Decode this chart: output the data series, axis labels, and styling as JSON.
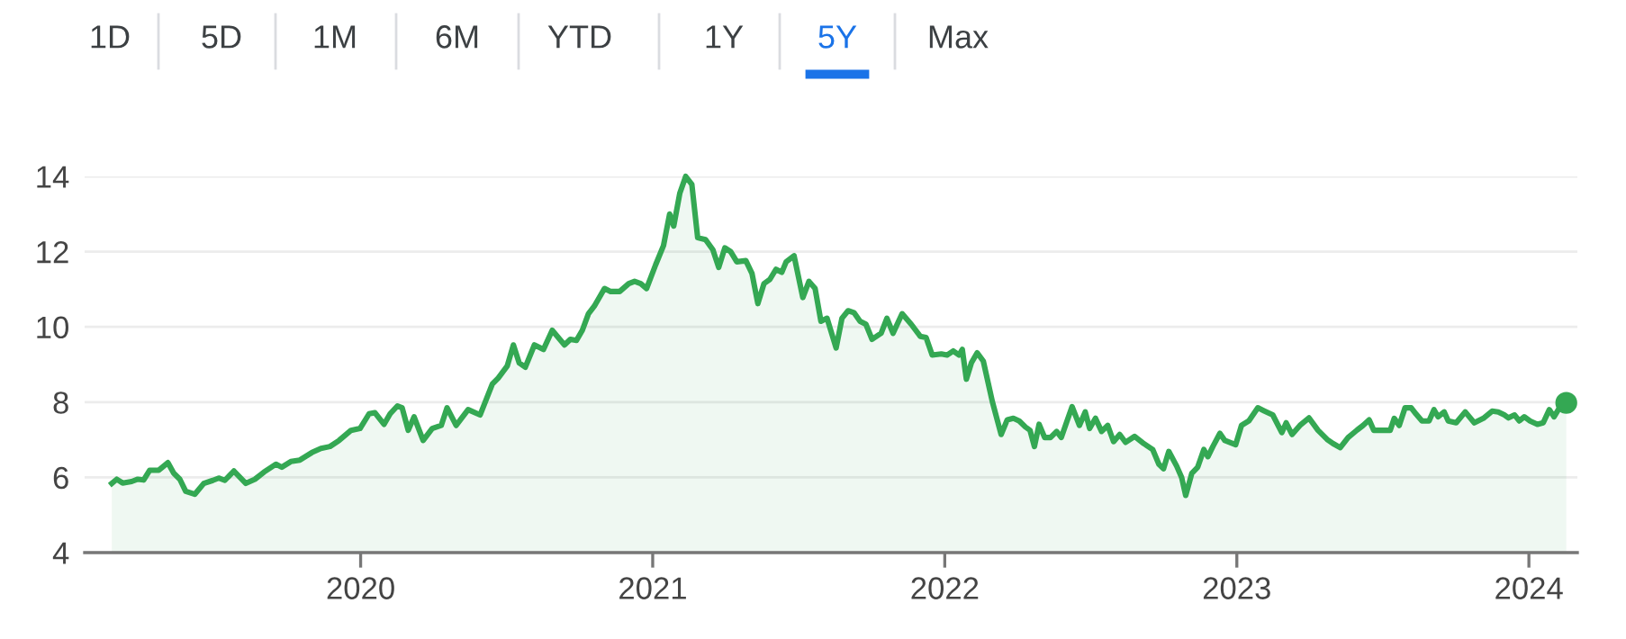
{
  "chart_data": {
    "type": "area",
    "annotations": [
      "1D",
      "5D",
      "1M",
      "6M",
      "YTD",
      "1Y",
      "5Y",
      "Max"
    ],
    "xlim": [
      2019.055,
      2024.166
    ],
    "xticks": [
      2020,
      2021,
      2022,
      2023,
      2024
    ],
    "ylim": [
      4,
      14
    ],
    "yticks": [
      4,
      6,
      8,
      10,
      12,
      14
    ],
    "grid": "y",
    "series": [
      {
        "color": "#34a853",
        "x": [
          2019.148,
          2019.165,
          2019.185,
          2019.216,
          2019.237,
          2019.257,
          2019.278,
          2019.309,
          2019.34,
          2019.36,
          2019.381,
          2019.401,
          2019.432,
          2019.463,
          2019.494,
          2019.514,
          2019.535,
          2019.566,
          2019.607,
          2019.638,
          2019.669,
          2019.71,
          2019.73,
          2019.761,
          2019.792,
          2019.833,
          2019.864,
          2019.895,
          2019.926,
          2019.967,
          2019.998,
          2020.029,
          2020.049,
          2020.08,
          2020.101,
          2020.126,
          2020.142,
          2020.163,
          2020.183,
          2020.214,
          2020.245,
          2020.276,
          2020.296,
          2020.327,
          2020.368,
          2020.409,
          2020.451,
          2020.471,
          2020.502,
          2020.523,
          2020.543,
          2020.564,
          2020.595,
          2020.626,
          2020.656,
          2020.698,
          2020.718,
          2020.739,
          2020.759,
          2020.78,
          2020.8,
          2020.835,
          2020.856,
          2020.887,
          2020.918,
          2020.938,
          2020.959,
          2020.979,
          2021.01,
          2021.037,
          2021.058,
          2021.072,
          2021.093,
          2021.113,
          2021.134,
          2021.154,
          2021.181,
          2021.206,
          2021.226,
          2021.247,
          2021.267,
          2021.288,
          2021.319,
          2021.34,
          2021.36,
          2021.381,
          2021.401,
          2021.422,
          2021.442,
          2021.457,
          2021.484,
          2021.514,
          2021.535,
          2021.556,
          2021.576,
          2021.597,
          2021.628,
          2021.648,
          2021.669,
          2021.689,
          2021.71,
          2021.73,
          2021.751,
          2021.782,
          2021.802,
          2021.823,
          2021.854,
          2021.885,
          2021.916,
          2021.936,
          2021.957,
          2021.988,
          2022.008,
          2022.029,
          2022.049,
          2022.06,
          2022.074,
          2022.091,
          2022.111,
          2022.132,
          2022.163,
          2022.193,
          2022.214,
          2022.235,
          2022.255,
          2022.276,
          2022.292,
          2022.307,
          2022.323,
          2022.342,
          2022.362,
          2022.383,
          2022.399,
          2022.42,
          2022.436,
          2022.461,
          2022.481,
          2022.496,
          2022.516,
          2022.537,
          2022.558,
          2022.578,
          2022.599,
          2022.619,
          2022.65,
          2022.681,
          2022.712,
          2022.733,
          2022.749,
          2022.767,
          2022.794,
          2022.811,
          2022.825,
          2022.846,
          2022.866,
          2022.887,
          2022.901,
          2022.918,
          2022.942,
          2022.959,
          2022.996,
          2023.016,
          2023.041,
          2023.072,
          2023.093,
          2023.123,
          2023.154,
          2023.169,
          2023.189,
          2023.216,
          2023.247,
          2023.278,
          2023.309,
          2023.329,
          2023.354,
          2023.381,
          2023.412,
          2023.432,
          2023.453,
          2023.469,
          2023.504,
          2023.525,
          2023.539,
          2023.556,
          2023.576,
          2023.597,
          2023.613,
          2023.634,
          2023.658,
          2023.675,
          2023.689,
          2023.71,
          2023.724,
          2023.751,
          2023.782,
          2023.813,
          2023.844,
          2023.874,
          2023.895,
          2023.916,
          2023.93,
          2023.951,
          2023.967,
          2023.984,
          2024.004,
          2024.029,
          2024.049,
          2024.07,
          2024.086,
          2024.107,
          2024.128
        ],
        "values": [
          5.84,
          5.95,
          5.85,
          5.89,
          5.95,
          5.93,
          6.19,
          6.19,
          6.39,
          6.11,
          5.95,
          5.63,
          5.55,
          5.84,
          5.92,
          5.98,
          5.92,
          6.17,
          5.84,
          5.95,
          6.14,
          6.35,
          6.27,
          6.42,
          6.46,
          6.66,
          6.77,
          6.82,
          6.98,
          7.25,
          7.3,
          7.69,
          7.72,
          7.41,
          7.69,
          7.9,
          7.85,
          7.25,
          7.61,
          6.98,
          7.3,
          7.38,
          7.85,
          7.38,
          7.8,
          7.66,
          8.48,
          8.64,
          8.96,
          9.52,
          9.04,
          8.93,
          9.52,
          9.4,
          9.91,
          9.52,
          9.67,
          9.64,
          9.91,
          10.35,
          10.55,
          11.02,
          10.94,
          10.94,
          11.15,
          11.21,
          11.15,
          11.02,
          11.65,
          12.16,
          13.0,
          12.68,
          13.56,
          14.0,
          13.79,
          12.37,
          12.32,
          12.05,
          11.58,
          12.1,
          12.0,
          11.73,
          11.76,
          11.42,
          10.62,
          11.15,
          11.26,
          11.53,
          11.45,
          11.73,
          11.89,
          10.78,
          11.21,
          11.02,
          10.15,
          10.23,
          9.44,
          10.23,
          10.43,
          10.38,
          10.15,
          10.07,
          9.67,
          9.83,
          10.23,
          9.83,
          10.35,
          10.07,
          9.75,
          9.72,
          9.25,
          9.28,
          9.25,
          9.36,
          9.25,
          9.4,
          8.61,
          9.04,
          9.31,
          9.09,
          8.01,
          7.14,
          7.53,
          7.57,
          7.5,
          7.34,
          7.25,
          6.82,
          7.41,
          7.06,
          7.06,
          7.22,
          7.06,
          7.53,
          7.88,
          7.38,
          7.74,
          7.3,
          7.57,
          7.22,
          7.38,
          6.95,
          7.14,
          6.93,
          7.09,
          6.9,
          6.74,
          6.35,
          6.23,
          6.69,
          6.3,
          6.0,
          5.52,
          6.11,
          6.27,
          6.74,
          6.55,
          6.82,
          7.17,
          6.98,
          6.87,
          7.38,
          7.5,
          7.85,
          7.77,
          7.66,
          7.19,
          7.45,
          7.14,
          7.38,
          7.58,
          7.25,
          7.01,
          6.9,
          6.79,
          7.06,
          7.26,
          7.38,
          7.53,
          7.25,
          7.25,
          7.25,
          7.57,
          7.38,
          7.85,
          7.85,
          7.69,
          7.5,
          7.5,
          7.8,
          7.61,
          7.74,
          7.5,
          7.45,
          7.74,
          7.45,
          7.57,
          7.76,
          7.74,
          7.66,
          7.58,
          7.66,
          7.5,
          7.61,
          7.5,
          7.41,
          7.45,
          7.8,
          7.61,
          7.88,
          7.98
        ]
      },
      {
        "type": "scatter",
        "color": "#34a853",
        "x": [
          2024.128
        ],
        "values": [
          7.98
        ]
      }
    ]
  }
}
